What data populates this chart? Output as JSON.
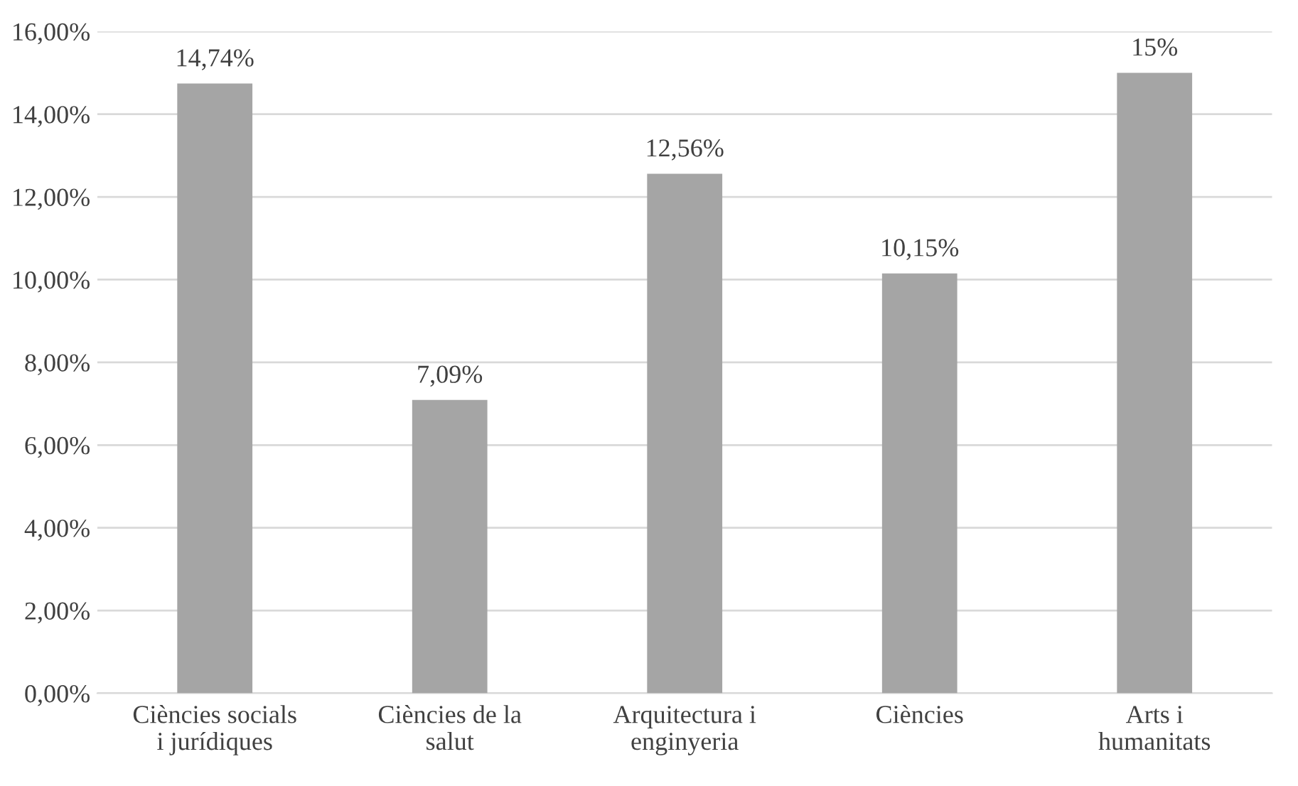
{
  "chart_data": {
    "type": "bar",
    "categories": [
      "Ciències socials\ni jurídiques",
      "Ciències de la\nsalut",
      "Arquitectura i\nenginyeria",
      "Ciències",
      "Arts i\nhumanitats"
    ],
    "values": [
      14.74,
      7.09,
      12.56,
      10.15,
      15
    ],
    "value_labels": [
      "14,74%",
      "7,09%",
      "12,56%",
      "10,15%",
      "15%"
    ],
    "color": "#a5a5a5",
    "ylim": [
      0,
      16
    ],
    "yticks": [
      {
        "value": 0,
        "label": "0,00%"
      },
      {
        "value": 2,
        "label": "2,00%"
      },
      {
        "value": 4,
        "label": "4,00%"
      },
      {
        "value": 6,
        "label": "6,00%"
      },
      {
        "value": 8,
        "label": "8,00%"
      },
      {
        "value": 10,
        "label": "10,00%"
      },
      {
        "value": 12,
        "label": "12,00%"
      },
      {
        "value": 14,
        "label": "14,00%"
      },
      {
        "value": 16,
        "label": "16,00%"
      }
    ],
    "grid": "y"
  }
}
